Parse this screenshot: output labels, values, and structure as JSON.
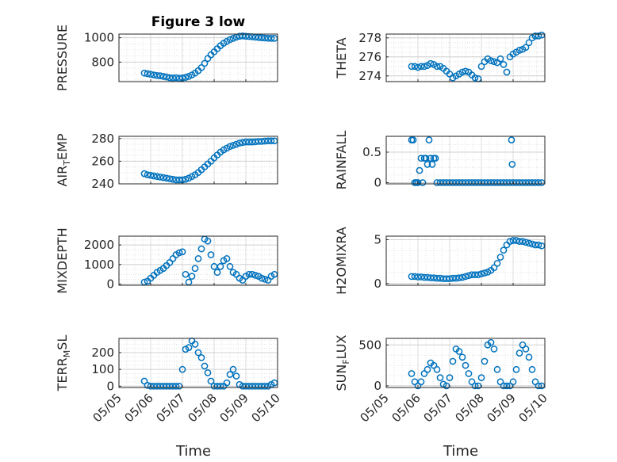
{
  "chart_data": [
    {
      "type": "scatter",
      "title": "Figure 3 low",
      "ylabel": "PRESSURE",
      "xlabel": "",
      "xlim": [
        0,
        5
      ],
      "ylim": [
        640,
        1030
      ],
      "y_ticks": [
        "800",
        "1000"
      ],
      "x_ticks": [],
      "grid": true,
      "color": "#0072BD",
      "series": [
        {
          "x": [
            0.8,
            0.9,
            1.0,
            1.1,
            1.2,
            1.3,
            1.4,
            1.5,
            1.6,
            1.7,
            1.8,
            1.9,
            2.0,
            2.1,
            2.2,
            2.3,
            2.4,
            2.5,
            2.6,
            2.7,
            2.8,
            2.9,
            3.0,
            3.1,
            3.2,
            3.3,
            3.4,
            3.5,
            3.6,
            3.7,
            3.8,
            3.9,
            4.0,
            4.1,
            4.2,
            4.3,
            4.4,
            4.5,
            4.6,
            4.7,
            4.8,
            4.9
          ],
          "y": [
            710,
            705,
            700,
            695,
            690,
            688,
            683,
            678,
            672,
            670,
            672,
            668,
            670,
            675,
            683,
            695,
            710,
            730,
            755,
            790,
            830,
            860,
            885,
            910,
            935,
            955,
            970,
            985,
            995,
            1005,
            1012,
            1015,
            1012,
            1010,
            1008,
            1005,
            1002,
            1000,
            998,
            996,
            995,
            995
          ]
        }
      ]
    },
    {
      "type": "scatter",
      "title": "",
      "ylabel": "THETA",
      "xlabel": "",
      "xlim": [
        0,
        5
      ],
      "ylim": [
        273.4,
        278.4
      ],
      "y_ticks": [
        "274",
        "276",
        "278"
      ],
      "x_ticks": [],
      "grid": true,
      "color": "#0072BD",
      "series": [
        {
          "x": [
            0.8,
            0.9,
            1.0,
            1.1,
            1.2,
            1.3,
            1.4,
            1.5,
            1.6,
            1.7,
            1.8,
            1.9,
            2.0,
            2.1,
            2.2,
            2.3,
            2.4,
            2.5,
            2.6,
            2.7,
            2.8,
            2.9,
            3.0,
            3.1,
            3.2,
            3.3,
            3.4,
            3.5,
            3.6,
            3.7,
            3.8,
            3.9,
            4.0,
            4.1,
            4.2,
            4.3,
            4.4,
            4.5,
            4.6,
            4.7,
            4.8,
            4.9
          ],
          "y": [
            275.0,
            275.0,
            274.9,
            275.0,
            275.0,
            275.1,
            275.3,
            275.2,
            275.0,
            275.0,
            274.8,
            274.5,
            274.2,
            273.8,
            274.0,
            274.2,
            274.4,
            274.5,
            274.4,
            274.1,
            273.8,
            273.7,
            275.0,
            275.5,
            275.8,
            275.6,
            275.5,
            275.4,
            275.8,
            275.2,
            274.4,
            276.0,
            276.3,
            276.5,
            276.7,
            276.8,
            277.0,
            277.5,
            278.0,
            278.2,
            278.2,
            278.3
          ]
        }
      ]
    },
    {
      "type": "scatter",
      "title": "",
      "ylabel": "AIR_TEMP",
      "xlabel": "",
      "xlim": [
        0,
        5
      ],
      "ylim": [
        240,
        282
      ],
      "y_ticks": [
        "240",
        "260",
        "280"
      ],
      "x_ticks": [],
      "grid": true,
      "color": "#0072BD",
      "series": [
        {
          "x": [
            0.8,
            0.9,
            1.0,
            1.1,
            1.2,
            1.3,
            1.4,
            1.5,
            1.6,
            1.7,
            1.8,
            1.9,
            2.0,
            2.1,
            2.2,
            2.3,
            2.4,
            2.5,
            2.6,
            2.7,
            2.8,
            2.9,
            3.0,
            3.1,
            3.2,
            3.3,
            3.4,
            3.5,
            3.6,
            3.7,
            3.8,
            3.9,
            4.0,
            4.1,
            4.2,
            4.3,
            4.4,
            4.5,
            4.6,
            4.7,
            4.8,
            4.9
          ],
          "y": [
            249,
            248,
            247.5,
            247,
            246.5,
            246,
            245.5,
            245,
            244.5,
            244,
            243.5,
            243.5,
            243.5,
            244,
            245,
            246.5,
            248,
            250,
            252.5,
            255,
            257.5,
            260,
            263,
            265.5,
            268,
            270,
            271.5,
            273,
            274,
            275,
            276,
            276.5,
            277,
            277,
            277,
            277.2,
            277.5,
            277.5,
            277.8,
            278,
            278,
            278
          ]
        }
      ]
    },
    {
      "type": "scatter",
      "title": "",
      "ylabel": "RAINFALL",
      "xlabel": "",
      "xlim": [
        0,
        5
      ],
      "ylim": [
        -0.02,
        0.76
      ],
      "y_ticks": [
        "0",
        "0.5"
      ],
      "x_ticks": [],
      "grid": true,
      "color": "#0072BD",
      "series": [
        {
          "x": [
            0.8,
            0.85,
            0.9,
            0.95,
            1.0,
            1.05,
            1.1,
            1.15,
            1.2,
            1.25,
            1.3,
            1.35,
            1.4,
            1.45,
            1.5,
            1.55,
            1.6,
            1.7,
            1.8,
            1.9,
            2.0,
            2.1,
            2.2,
            2.3,
            2.4,
            2.5,
            2.6,
            2.7,
            2.8,
            2.9,
            3.0,
            3.1,
            3.2,
            3.3,
            3.4,
            3.5,
            3.6,
            3.7,
            3.8,
            3.9,
            4.0,
            4.1,
            4.2,
            4.3,
            4.4,
            4.5,
            4.6,
            4.7,
            4.8,
            4.9,
            3.95,
            3.97
          ],
          "y": [
            0.7,
            0.7,
            0,
            0,
            0,
            0.2,
            0.4,
            0,
            0.4,
            0.4,
            0.3,
            0.7,
            0.4,
            0.3,
            0.4,
            0.4,
            0,
            0,
            0,
            0,
            0,
            0,
            0,
            0,
            0,
            0,
            0,
            0,
            0,
            0,
            0,
            0,
            0,
            0,
            0,
            0,
            0,
            0,
            0,
            0,
            0,
            0,
            0,
            0,
            0,
            0,
            0,
            0,
            0,
            0,
            0.7,
            0.3
          ]
        }
      ]
    },
    {
      "type": "scatter",
      "title": "",
      "ylabel": "MIXDEPTH",
      "xlabel": "",
      "xlim": [
        0,
        5
      ],
      "ylim": [
        -60,
        2450
      ],
      "y_ticks": [
        "0",
        "1000",
        "2000"
      ],
      "x_ticks": [],
      "grid": true,
      "color": "#0072BD",
      "series": [
        {
          "x": [
            0.8,
            0.9,
            1.0,
            1.1,
            1.2,
            1.3,
            1.4,
            1.5,
            1.6,
            1.7,
            1.8,
            1.9,
            2.0,
            2.1,
            2.2,
            2.3,
            2.4,
            2.5,
            2.6,
            2.7,
            2.8,
            2.9,
            3.0,
            3.1,
            3.2,
            3.3,
            3.4,
            3.5,
            3.6,
            3.7,
            3.8,
            3.9,
            4.0,
            4.1,
            4.2,
            4.3,
            4.4,
            4.5,
            4.6,
            4.7,
            4.8,
            4.9
          ],
          "y": [
            100,
            150,
            300,
            450,
            600,
            700,
            800,
            950,
            1100,
            1300,
            1500,
            1600,
            1650,
            500,
            100,
            400,
            800,
            1300,
            1800,
            2300,
            2200,
            1500,
            900,
            600,
            900,
            1200,
            1300,
            900,
            600,
            500,
            300,
            200,
            400,
            500,
            500,
            450,
            400,
            300,
            250,
            200,
            400,
            500
          ]
        }
      ]
    },
    {
      "type": "scatter",
      "title": "",
      "ylabel": "H2OMIXRA",
      "xlabel": "",
      "xlim": [
        0,
        5
      ],
      "ylim": [
        -0.2,
        5.4
      ],
      "y_ticks": [
        "0",
        "5"
      ],
      "x_ticks": [],
      "grid": true,
      "color": "#0072BD",
      "series": [
        {
          "x": [
            0.8,
            0.9,
            1.0,
            1.1,
            1.2,
            1.3,
            1.4,
            1.5,
            1.6,
            1.7,
            1.8,
            1.9,
            2.0,
            2.1,
            2.2,
            2.3,
            2.4,
            2.5,
            2.6,
            2.7,
            2.8,
            2.9,
            3.0,
            3.1,
            3.2,
            3.3,
            3.4,
            3.5,
            3.6,
            3.7,
            3.8,
            3.9,
            4.0,
            4.1,
            4.2,
            4.3,
            4.4,
            4.5,
            4.6,
            4.7,
            4.8,
            4.9
          ],
          "y": [
            0.8,
            0.8,
            0.75,
            0.75,
            0.7,
            0.7,
            0.65,
            0.65,
            0.6,
            0.6,
            0.55,
            0.55,
            0.55,
            0.6,
            0.6,
            0.65,
            0.7,
            0.8,
            0.9,
            1.0,
            1.0,
            1.0,
            1.1,
            1.2,
            1.3,
            1.5,
            1.8,
            2.3,
            3.0,
            3.8,
            4.4,
            4.8,
            4.9,
            4.9,
            4.8,
            4.8,
            4.7,
            4.6,
            4.5,
            4.4,
            4.4,
            4.3
          ]
        }
      ]
    },
    {
      "type": "scatter",
      "title": "",
      "ylabel": "TERR_MSL",
      "xlabel": "Time",
      "xlim": [
        0,
        5
      ],
      "ylim": [
        -8,
        285
      ],
      "y_ticks": [
        "0",
        "100",
        "200"
      ],
      "x_ticks": [
        "05/05",
        "05/06",
        "05/07",
        "05/08",
        "05/09",
        "05/10"
      ],
      "grid": true,
      "color": "#0072BD",
      "series": [
        {
          "x": [
            0.8,
            0.9,
            1.0,
            1.1,
            1.2,
            1.3,
            1.4,
            1.5,
            1.6,
            1.7,
            1.8,
            1.9,
            2.0,
            2.1,
            2.2,
            2.3,
            2.4,
            2.5,
            2.6,
            2.7,
            2.8,
            2.9,
            3.0,
            3.1,
            3.2,
            3.3,
            3.4,
            3.5,
            3.6,
            3.7,
            3.8,
            3.9,
            4.0,
            4.1,
            4.2,
            4.3,
            4.4,
            4.5,
            4.6,
            4.7,
            4.8,
            4.9
          ],
          "y": [
            30,
            5,
            0,
            0,
            0,
            0,
            0,
            0,
            0,
            0,
            0,
            0,
            100,
            220,
            230,
            270,
            250,
            200,
            170,
            120,
            80,
            30,
            0,
            0,
            0,
            0,
            20,
            70,
            100,
            60,
            10,
            0,
            0,
            0,
            0,
            0,
            0,
            0,
            0,
            0,
            10,
            20
          ]
        }
      ]
    },
    {
      "type": "scatter",
      "title": "",
      "ylabel": "SUN_FLUX",
      "xlabel": "Time",
      "xlim": [
        0,
        5
      ],
      "ylim": [
        -20,
        580
      ],
      "y_ticks": [
        "0",
        "500"
      ],
      "x_ticks": [
        "05/05",
        "05/06",
        "05/07",
        "05/08",
        "05/09",
        "05/10"
      ],
      "grid": true,
      "color": "#0072BD",
      "series": [
        {
          "x": [
            0.8,
            0.9,
            1.0,
            1.1,
            1.2,
            1.3,
            1.4,
            1.5,
            1.6,
            1.7,
            1.8,
            1.9,
            2.0,
            2.1,
            2.2,
            2.3,
            2.4,
            2.5,
            2.6,
            2.7,
            2.8,
            2.9,
            3.0,
            3.1,
            3.2,
            3.3,
            3.4,
            3.5,
            3.6,
            3.7,
            3.8,
            3.9,
            4.0,
            4.1,
            4.2,
            4.3,
            4.4,
            4.5,
            4.6,
            4.7,
            4.8,
            4.9
          ],
          "y": [
            150,
            50,
            0,
            50,
            150,
            200,
            280,
            250,
            200,
            100,
            20,
            0,
            100,
            300,
            450,
            420,
            350,
            250,
            150,
            50,
            0,
            0,
            100,
            300,
            500,
            530,
            450,
            200,
            50,
            0,
            0,
            0,
            50,
            200,
            400,
            500,
            450,
            350,
            200,
            50,
            0,
            0
          ]
        }
      ]
    }
  ]
}
